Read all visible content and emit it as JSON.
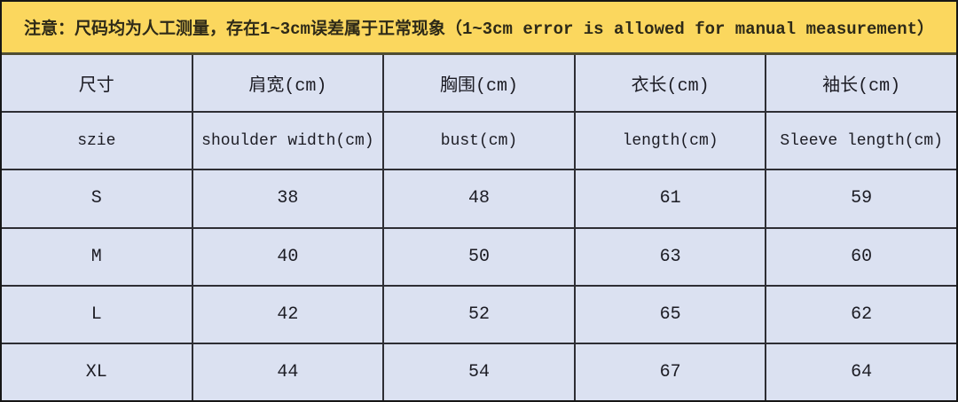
{
  "banner": {
    "text": "注意：尺码均为人工测量，存在1~3cm误差属于正常现象（1~3cm error is allowed for manual measurement）"
  },
  "colors": {
    "banner_bg": "#FBD75E",
    "banner_text": "#2E2A18",
    "cell_bg": "#DBE1F1",
    "grid_border": "#2E2E34",
    "outer_border": "#161616",
    "banner_separator": "#4F4D33"
  },
  "chart_data": {
    "type": "table",
    "title": "注意：尺码均为人工测量，存在1~3cm误差属于正常现象（1~3cm error is allowed for manual measurement）",
    "columns_cn": [
      "尺寸",
      "肩宽(cm)",
      "胸围(cm)",
      "衣长(cm)",
      "袖长(cm)"
    ],
    "columns_en": [
      "szie",
      "shoulder width(cm)",
      "bust(cm)",
      "length(cm)",
      "Sleeve length(cm)"
    ],
    "rows": [
      [
        "S",
        "38",
        "48",
        "61",
        "59"
      ],
      [
        "M",
        "40",
        "50",
        "63",
        "60"
      ],
      [
        "L",
        "42",
        "52",
        "65",
        "62"
      ],
      [
        "XL",
        "44",
        "54",
        "67",
        "64"
      ]
    ],
    "layout": "grid table, 5 equal columns, all cells center-aligned, lavender background, dark grid lines"
  }
}
